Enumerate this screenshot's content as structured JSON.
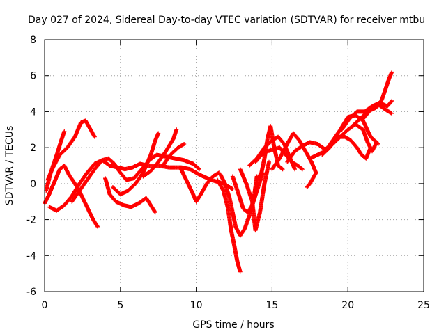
{
  "chart_data": {
    "type": "scatter",
    "title": "Day 027 of 2024, Sidereal Day-to-day VTEC variation (SDTVAR) for receiver mtbu",
    "xlabel": "GPS time / hours",
    "ylabel": "SDTVAR / TECUs",
    "xlim": [
      0,
      25
    ],
    "ylim": [
      -6,
      8
    ],
    "xticks": [
      0,
      5,
      10,
      15,
      20,
      25
    ],
    "yticks": [
      -6,
      -4,
      -2,
      0,
      2,
      4,
      6,
      8
    ],
    "xtick_labels": [
      "0",
      "5",
      "10",
      "15",
      "20",
      "25"
    ],
    "ytick_labels": [
      "-6",
      "-4",
      "-2",
      "0",
      "2",
      "4",
      "6",
      "8"
    ],
    "grid": true,
    "marker": "plus",
    "series": [
      {
        "name": "SDTVAR",
        "color": "#ff0000",
        "tracks": [
          [
            [
              0.0,
              -1.1
            ],
            [
              0.3,
              -0.6
            ],
            [
              0.6,
              0.0
            ],
            [
              1.0,
              0.8
            ],
            [
              1.3,
              1.0
            ],
            [
              1.6,
              0.5
            ],
            [
              2.0,
              0.0
            ],
            [
              2.4,
              -0.6
            ],
            [
              2.8,
              -1.3
            ],
            [
              3.2,
              -2.0
            ],
            [
              3.5,
              -2.4
            ]
          ],
          [
            [
              0.1,
              -0.4
            ],
            [
              0.4,
              0.6
            ],
            [
              0.8,
              1.6
            ],
            [
              1.1,
              2.4
            ],
            [
              1.3,
              2.9
            ]
          ],
          [
            [
              0.2,
              0.2
            ],
            [
              0.5,
              0.8
            ],
            [
              1.0,
              1.6
            ],
            [
              1.5,
              2.0
            ],
            [
              2.0,
              2.6
            ],
            [
              2.4,
              3.4
            ],
            [
              2.7,
              3.5
            ],
            [
              3.1,
              2.9
            ],
            [
              3.3,
              2.6
            ]
          ],
          [
            [
              0.3,
              -1.3
            ],
            [
              0.8,
              -1.5
            ],
            [
              1.3,
              -1.2
            ],
            [
              1.8,
              -0.7
            ],
            [
              2.3,
              0.0
            ],
            [
              2.8,
              0.6
            ],
            [
              3.3,
              1.1
            ],
            [
              3.8,
              1.3
            ],
            [
              4.3,
              1.0
            ],
            [
              4.8,
              0.9
            ],
            [
              5.3,
              0.8
            ],
            [
              5.8,
              0.9
            ],
            [
              6.3,
              1.1
            ],
            [
              6.8,
              1.0
            ],
            [
              7.5,
              1.0
            ],
            [
              8.2,
              0.9
            ],
            [
              9.0,
              0.9
            ],
            [
              9.6,
              0.8
            ],
            [
              10.2,
              0.5
            ],
            [
              11.0,
              0.2
            ],
            [
              11.8,
              0.0
            ],
            [
              12.4,
              -0.3
            ]
          ],
          [
            [
              1.8,
              -1.0
            ],
            [
              2.3,
              -0.4
            ],
            [
              2.8,
              0.2
            ],
            [
              3.3,
              0.8
            ],
            [
              3.8,
              1.3
            ],
            [
              4.2,
              1.4
            ],
            [
              4.6,
              1.1
            ],
            [
              5.0,
              0.6
            ],
            [
              5.4,
              0.2
            ],
            [
              5.9,
              0.3
            ],
            [
              6.4,
              0.8
            ],
            [
              6.9,
              1.3
            ],
            [
              7.4,
              1.6
            ],
            [
              8.0,
              1.5
            ],
            [
              8.6,
              1.4
            ],
            [
              9.2,
              1.3
            ],
            [
              9.8,
              1.1
            ],
            [
              10.2,
              0.8
            ]
          ],
          [
            [
              4.0,
              0.3
            ],
            [
              4.3,
              -0.6
            ],
            [
              4.7,
              -1.0
            ],
            [
              5.2,
              -1.2
            ],
            [
              5.7,
              -1.3
            ],
            [
              6.2,
              -1.1
            ],
            [
              6.7,
              -0.8
            ],
            [
              7.0,
              -1.2
            ],
            [
              7.3,
              -1.6
            ]
          ],
          [
            [
              4.5,
              -0.2
            ],
            [
              5.0,
              -0.6
            ],
            [
              5.5,
              -0.4
            ],
            [
              6.0,
              0.0
            ],
            [
              6.5,
              0.6
            ],
            [
              7.0,
              1.6
            ],
            [
              7.3,
              2.4
            ],
            [
              7.5,
              2.8
            ]
          ],
          [
            [
              6.5,
              0.4
            ],
            [
              7.0,
              0.7
            ],
            [
              7.5,
              1.2
            ],
            [
              8.0,
              1.8
            ],
            [
              8.5,
              2.5
            ],
            [
              8.7,
              3.0
            ]
          ],
          [
            [
              7.8,
              1.0
            ],
            [
              8.3,
              1.6
            ],
            [
              8.8,
              2.0
            ],
            [
              9.2,
              2.2
            ]
          ],
          [
            [
              9.0,
              0.8
            ],
            [
              9.4,
              0.1
            ],
            [
              9.8,
              -0.6
            ],
            [
              10.0,
              -1.0
            ],
            [
              10.3,
              -0.6
            ],
            [
              10.7,
              0.0
            ],
            [
              11.1,
              0.4
            ],
            [
              11.5,
              0.6
            ]
          ],
          [
            [
              11.4,
              0.2
            ],
            [
              11.8,
              -0.4
            ],
            [
              12.1,
              -1.4
            ],
            [
              12.3,
              -2.6
            ],
            [
              12.5,
              -3.4
            ],
            [
              12.7,
              -4.3
            ],
            [
              12.9,
              -4.9
            ]
          ],
          [
            [
              11.6,
              0.5
            ],
            [
              11.9,
              0.0
            ],
            [
              12.2,
              -0.8
            ],
            [
              12.6,
              -2.4
            ],
            [
              12.9,
              -2.9
            ],
            [
              13.2,
              -2.5
            ],
            [
              13.5,
              -1.8
            ],
            [
              13.8,
              -0.8
            ],
            [
              14.0,
              0.4
            ]
          ],
          [
            [
              12.4,
              0.4
            ],
            [
              12.8,
              -0.6
            ],
            [
              13.1,
              -1.4
            ],
            [
              13.4,
              -1.6
            ],
            [
              13.7,
              -1.2
            ],
            [
              14.0,
              -0.4
            ],
            [
              14.4,
              0.6
            ]
          ],
          [
            [
              12.9,
              0.8
            ],
            [
              13.3,
              0.0
            ],
            [
              13.7,
              -1.0
            ],
            [
              13.9,
              -2.6
            ],
            [
              14.2,
              -1.6
            ],
            [
              14.5,
              0.0
            ],
            [
              14.8,
              1.2
            ]
          ],
          [
            [
              14.0,
              0.2
            ],
            [
              14.3,
              0.6
            ],
            [
              14.5,
              1.4
            ],
            [
              14.7,
              2.5
            ],
            [
              14.9,
              3.2
            ],
            [
              15.1,
              2.2
            ],
            [
              15.4,
              1.0
            ],
            [
              15.7,
              0.8
            ]
          ],
          [
            [
              13.9,
              1.2
            ],
            [
              14.3,
              1.6
            ],
            [
              14.7,
              1.8
            ],
            [
              15.1,
              1.9
            ],
            [
              15.5,
              2.0
            ],
            [
              15.9,
              1.6
            ],
            [
              16.3,
              1.2
            ],
            [
              16.7,
              1.0
            ],
            [
              17.0,
              0.8
            ]
          ],
          [
            [
              13.5,
              1.0
            ],
            [
              14.0,
              1.4
            ],
            [
              14.5,
              2.0
            ],
            [
              15.0,
              2.4
            ],
            [
              15.4,
              2.6
            ],
            [
              15.8,
              2.2
            ],
            [
              16.2,
              1.4
            ],
            [
              16.5,
              0.8
            ]
          ],
          [
            [
              15.0,
              0.8
            ],
            [
              15.5,
              1.4
            ],
            [
              16.0,
              2.2
            ],
            [
              16.4,
              2.8
            ],
            [
              16.8,
              2.4
            ],
            [
              17.2,
              1.8
            ],
            [
              17.6,
              1.2
            ],
            [
              17.9,
              0.6
            ],
            [
              17.5,
              0.0
            ],
            [
              17.3,
              -0.2
            ]
          ],
          [
            [
              16.0,
              1.2
            ],
            [
              16.5,
              1.8
            ],
            [
              17.0,
              2.1
            ],
            [
              17.5,
              2.3
            ],
            [
              18.0,
              2.2
            ],
            [
              18.5,
              1.9
            ],
            [
              19.0,
              2.2
            ],
            [
              19.5,
              2.6
            ],
            [
              20.0,
              3.0
            ],
            [
              20.5,
              3.3
            ],
            [
              21.0,
              3.0
            ],
            [
              21.3,
              2.3
            ],
            [
              21.6,
              1.8
            ],
            [
              21.9,
              2.3
            ]
          ],
          [
            [
              17.5,
              1.4
            ],
            [
              18.0,
              1.6
            ],
            [
              18.5,
              1.8
            ],
            [
              19.0,
              2.4
            ],
            [
              19.5,
              3.0
            ],
            [
              20.0,
              3.7
            ],
            [
              20.5,
              3.8
            ],
            [
              21.0,
              3.5
            ],
            [
              21.5,
              2.6
            ],
            [
              22.0,
              2.2
            ]
          ],
          [
            [
              18.3,
              1.6
            ],
            [
              18.8,
              2.0
            ],
            [
              19.3,
              2.6
            ],
            [
              19.8,
              2.6
            ],
            [
              20.2,
              2.4
            ],
            [
              20.6,
              2.0
            ],
            [
              20.9,
              1.6
            ],
            [
              21.2,
              1.4
            ],
            [
              21.5,
              2.0
            ]
          ],
          [
            [
              19.6,
              3.0
            ],
            [
              20.1,
              3.6
            ],
            [
              20.6,
              4.0
            ],
            [
              21.1,
              4.0
            ],
            [
              21.6,
              4.3
            ],
            [
              22.1,
              4.5
            ],
            [
              22.6,
              4.3
            ],
            [
              22.9,
              4.6
            ]
          ],
          [
            [
              20.3,
              3.2
            ],
            [
              20.8,
              3.6
            ],
            [
              21.3,
              4.0
            ],
            [
              21.8,
              4.2
            ],
            [
              22.1,
              4.4
            ],
            [
              22.3,
              4.8
            ],
            [
              22.5,
              5.3
            ],
            [
              22.7,
              5.8
            ],
            [
              22.9,
              6.2
            ]
          ],
          [
            [
              21.0,
              3.6
            ],
            [
              21.5,
              4.1
            ],
            [
              22.0,
              4.4
            ],
            [
              22.5,
              4.1
            ],
            [
              22.9,
              3.9
            ]
          ]
        ]
      }
    ]
  }
}
